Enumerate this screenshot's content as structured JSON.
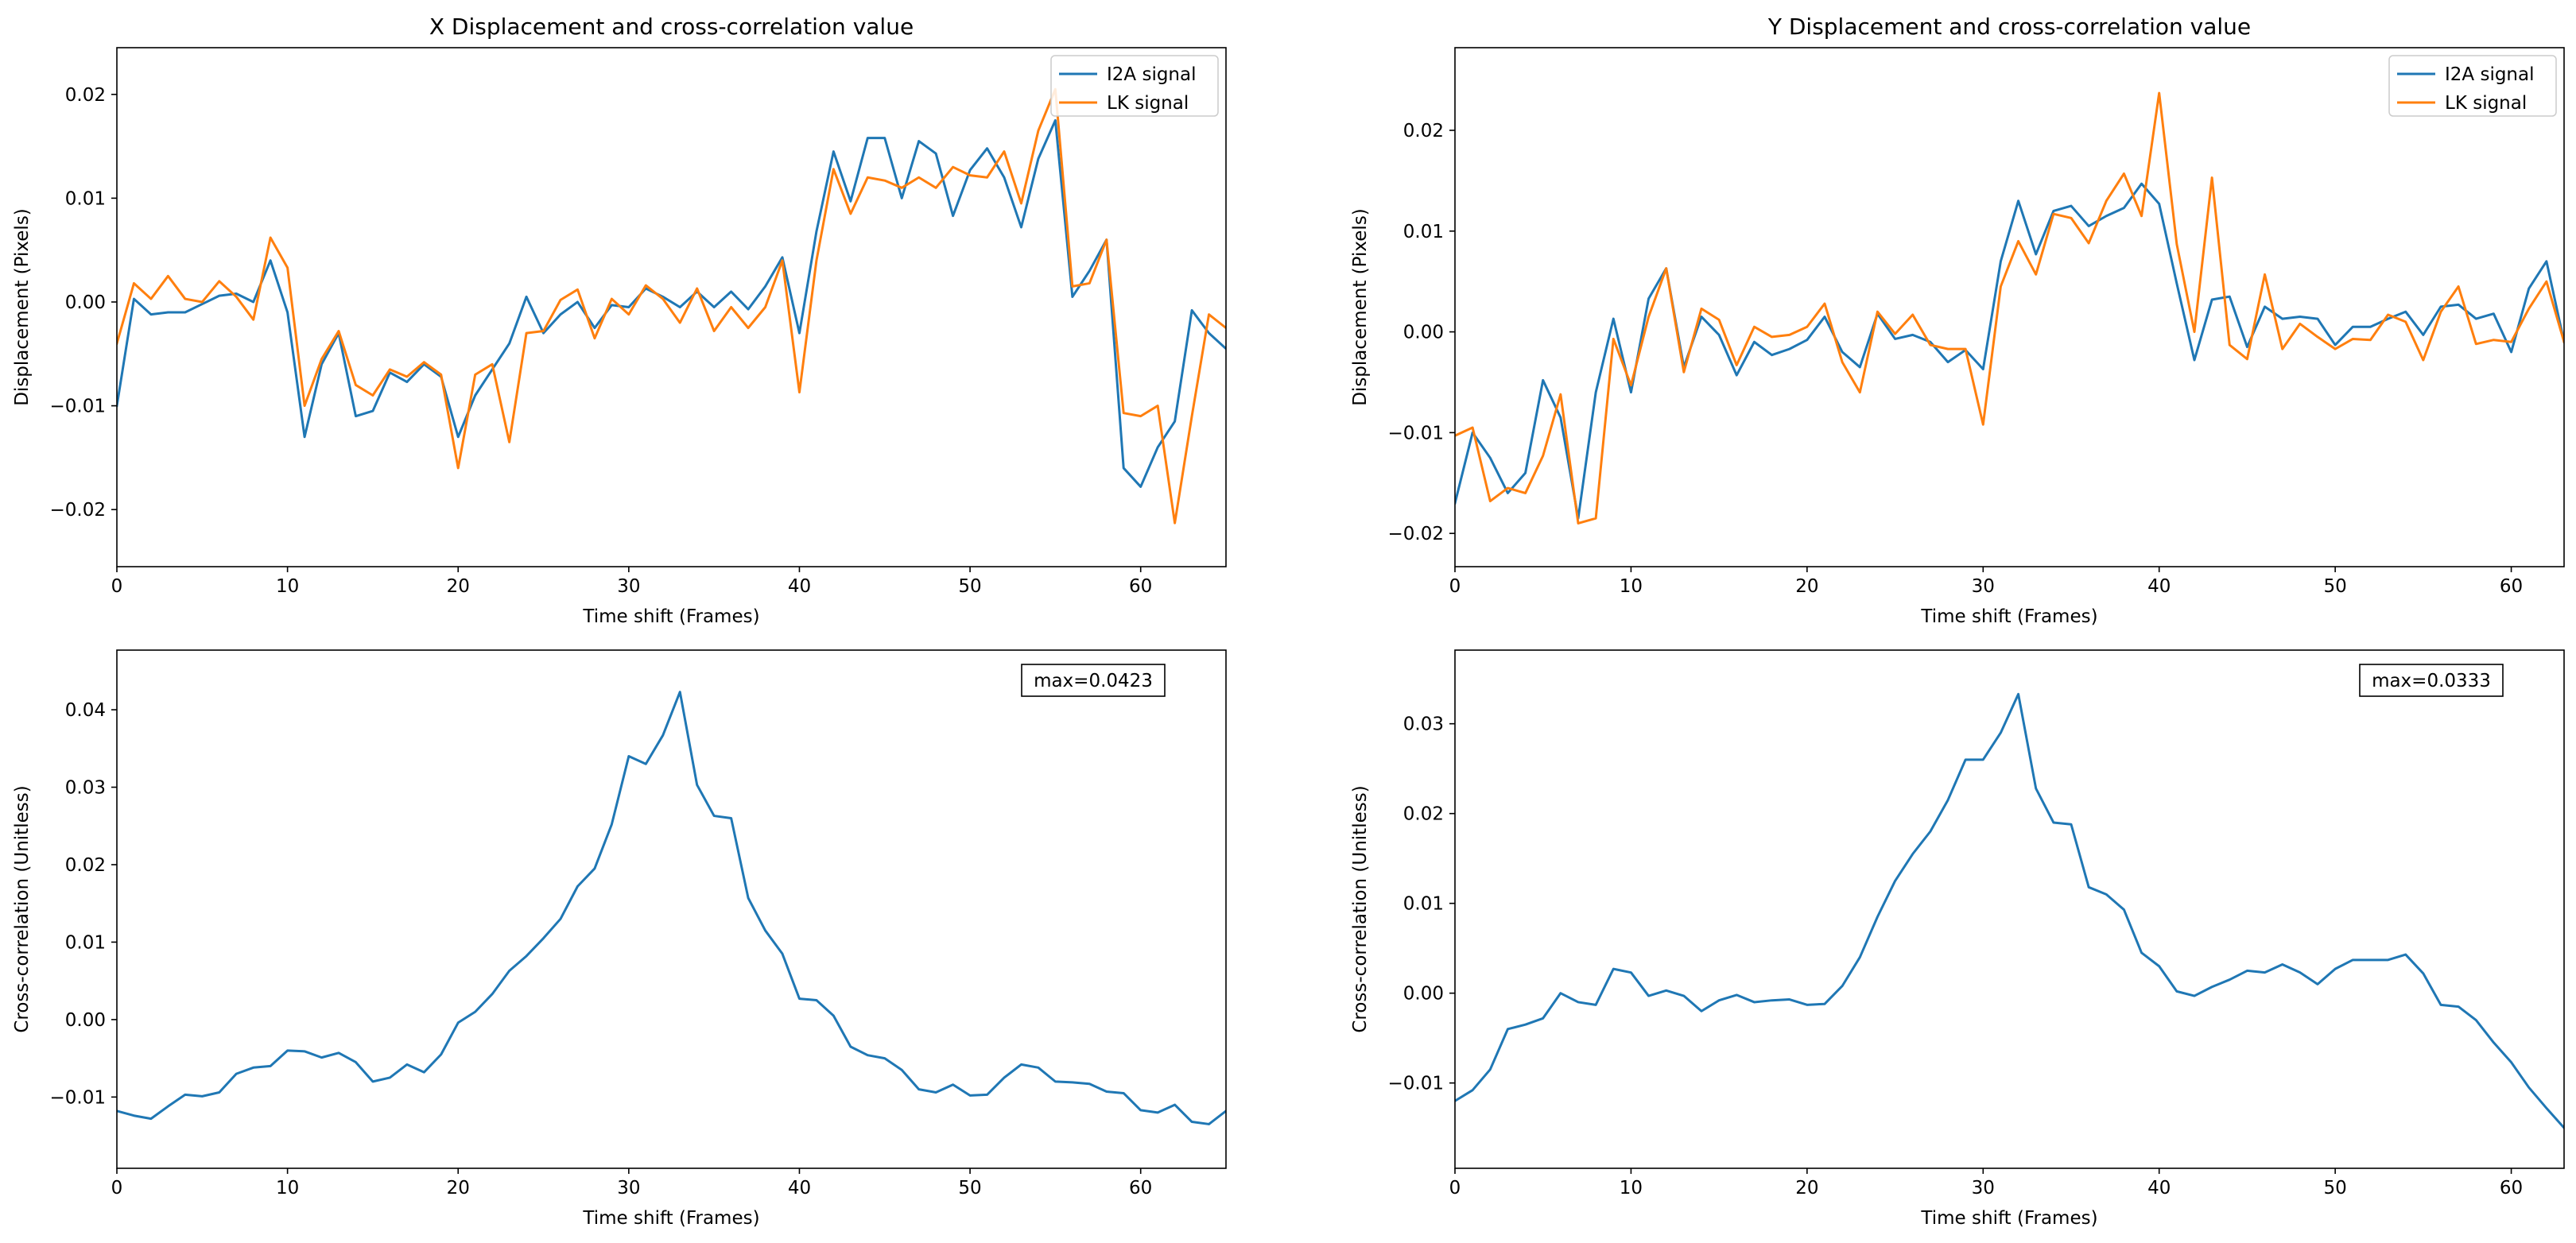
{
  "chart_data": [
    {
      "type": "line",
      "title": "X Displacement and cross-correlation value",
      "xlabel": "Time shift (Frames)",
      "ylabel": "Displacement (Pixels)",
      "xlim": [
        0,
        65
      ],
      "ylim": [
        -0.0255,
        0.0245
      ],
      "xticks": [
        0,
        10,
        20,
        30,
        40,
        50,
        60
      ],
      "xtick_labels": [
        "0",
        "10",
        "20",
        "30",
        "40",
        "50",
        "60"
      ],
      "yticks": [
        -0.02,
        -0.01,
        0.0,
        0.01,
        0.02
      ],
      "ytick_labels": [
        "−0.02",
        "−0.01",
        "0.00",
        "0.01",
        "0.02"
      ],
      "legend_position": "top-right",
      "grid": false,
      "series": [
        {
          "name": "I2A signal",
          "color": "#1f77b4",
          "x": [
            0,
            1,
            2,
            3,
            4,
            5,
            6,
            7,
            8,
            9,
            10,
            11,
            12,
            13,
            14,
            15,
            16,
            17,
            18,
            19,
            20,
            21,
            22,
            23,
            24,
            25,
            26,
            27,
            28,
            29,
            30,
            31,
            32,
            33,
            34,
            35,
            36,
            37,
            38,
            39,
            40,
            41,
            42,
            43,
            44,
            45,
            46,
            47,
            48,
            49,
            50,
            51,
            52,
            53,
            54,
            55,
            56,
            57,
            58,
            59,
            60,
            61,
            62,
            63,
            64,
            65
          ],
          "values": [
            -0.01,
            0.0003,
            -0.0012,
            -0.001,
            -0.001,
            -0.0002,
            0.0006,
            0.0008,
            0.0,
            0.004,
            -0.001,
            -0.013,
            -0.006,
            -0.003,
            -0.011,
            -0.0105,
            -0.0068,
            -0.0077,
            -0.006,
            -0.0072,
            -0.013,
            -0.009,
            -0.0065,
            -0.004,
            0.0005,
            -0.003,
            -0.0012,
            0.0,
            -0.0025,
            -0.0003,
            -0.0005,
            0.0013,
            0.0005,
            -0.0005,
            0.001,
            -0.0005,
            0.001,
            -0.0007,
            0.0015,
            0.0043,
            -0.003,
            0.0068,
            0.0145,
            0.0097,
            0.0158,
            0.0158,
            0.01,
            0.0155,
            0.0143,
            0.0083,
            0.0127,
            0.0148,
            0.012,
            0.0072,
            0.0138,
            0.0175,
            0.0005,
            0.003,
            0.006,
            -0.016,
            -0.0178,
            -0.014,
            -0.0115,
            -0.0008,
            -0.003,
            -0.0045
          ]
        },
        {
          "name": "LK signal",
          "color": "#ff7f0e",
          "x": [
            0,
            1,
            2,
            3,
            4,
            5,
            6,
            7,
            8,
            9,
            10,
            11,
            12,
            13,
            14,
            15,
            16,
            17,
            18,
            19,
            20,
            21,
            22,
            23,
            24,
            25,
            26,
            27,
            28,
            29,
            30,
            31,
            32,
            33,
            34,
            35,
            36,
            37,
            38,
            39,
            40,
            41,
            42,
            43,
            44,
            45,
            46,
            47,
            48,
            49,
            50,
            51,
            52,
            53,
            54,
            55,
            56,
            57,
            58,
            59,
            60,
            61,
            62,
            63,
            64,
            65
          ],
          "values": [
            -0.004,
            0.0018,
            0.0003,
            0.0025,
            0.0003,
            0.0,
            0.002,
            0.0005,
            -0.0017,
            0.0062,
            0.0033,
            -0.01,
            -0.0055,
            -0.0028,
            -0.008,
            -0.009,
            -0.0065,
            -0.0072,
            -0.0058,
            -0.007,
            -0.016,
            -0.007,
            -0.006,
            -0.0135,
            -0.003,
            -0.0028,
            0.0002,
            0.0012,
            -0.0035,
            0.0003,
            -0.0012,
            0.0016,
            0.0003,
            -0.002,
            0.0013,
            -0.0028,
            -0.0005,
            -0.0025,
            -0.0005,
            0.004,
            -0.0087,
            0.004,
            0.0128,
            0.0085,
            0.012,
            0.0117,
            0.011,
            0.012,
            0.011,
            0.013,
            0.0122,
            0.012,
            0.0145,
            0.0095,
            0.0165,
            0.0205,
            0.0015,
            0.0018,
            0.006,
            -0.0107,
            -0.011,
            -0.01,
            -0.0213,
            -0.011,
            -0.0012,
            -0.0025
          ]
        }
      ]
    },
    {
      "type": "line",
      "title": "Y Displacement and cross-correlation value",
      "xlabel": "Time shift (Frames)",
      "ylabel": "Displacement (Pixels)",
      "xlim": [
        0,
        63
      ],
      "ylim": [
        -0.0233,
        0.0282
      ],
      "xticks": [
        0,
        10,
        20,
        30,
        40,
        50,
        60
      ],
      "xtick_labels": [
        "0",
        "10",
        "20",
        "30",
        "40",
        "50",
        "60"
      ],
      "yticks": [
        -0.02,
        -0.01,
        0.0,
        0.01,
        0.02
      ],
      "ytick_labels": [
        "−0.02",
        "−0.01",
        "0.00",
        "0.01",
        "0.02"
      ],
      "legend_position": "top-right",
      "grid": false,
      "series": [
        {
          "name": "I2A signal",
          "color": "#1f77b4",
          "x": [
            0,
            1,
            2,
            3,
            4,
            5,
            6,
            7,
            8,
            9,
            10,
            11,
            12,
            13,
            14,
            15,
            16,
            17,
            18,
            19,
            20,
            21,
            22,
            23,
            24,
            25,
            26,
            27,
            28,
            29,
            30,
            31,
            32,
            33,
            34,
            35,
            36,
            37,
            38,
            39,
            40,
            41,
            42,
            43,
            44,
            45,
            46,
            47,
            48,
            49,
            50,
            51,
            52,
            53,
            54,
            55,
            56,
            57,
            58,
            59,
            60,
            61,
            62,
            63
          ],
          "values": [
            -0.017,
            -0.01,
            -0.0125,
            -0.016,
            -0.014,
            -0.0048,
            -0.0085,
            -0.0185,
            -0.006,
            0.0013,
            -0.006,
            0.0033,
            0.0063,
            -0.0035,
            0.0015,
            -0.0003,
            -0.0043,
            -0.001,
            -0.0023,
            -0.0017,
            -0.0008,
            0.0015,
            -0.002,
            -0.0035,
            0.0018,
            -0.0007,
            -0.0003,
            -0.001,
            -0.003,
            -0.0018,
            -0.0037,
            0.007,
            0.013,
            0.0077,
            0.012,
            0.0125,
            0.0105,
            0.0115,
            0.0123,
            0.0147,
            0.0127,
            0.0048,
            -0.0028,
            0.0032,
            0.0035,
            -0.0015,
            0.0025,
            0.0013,
            0.0015,
            0.0013,
            -0.0013,
            0.0005,
            0.0005,
            0.0013,
            0.002,
            -0.0003,
            0.0025,
            0.0027,
            0.0013,
            0.0018,
            -0.002,
            0.0043,
            0.007,
            -0.001
          ]
        },
        {
          "name": "LK signal",
          "color": "#ff7f0e",
          "x": [
            0,
            1,
            2,
            3,
            4,
            5,
            6,
            7,
            8,
            9,
            10,
            11,
            12,
            13,
            14,
            15,
            16,
            17,
            18,
            19,
            20,
            21,
            22,
            23,
            24,
            25,
            26,
            27,
            28,
            29,
            30,
            31,
            32,
            33,
            34,
            35,
            36,
            37,
            38,
            39,
            40,
            41,
            42,
            43,
            44,
            45,
            46,
            47,
            48,
            49,
            50,
            51,
            52,
            53,
            54,
            55,
            56,
            57,
            58,
            59,
            60,
            61,
            62,
            63
          ],
          "values": [
            -0.0103,
            -0.0095,
            -0.0168,
            -0.0155,
            -0.016,
            -0.0123,
            -0.0062,
            -0.019,
            -0.0185,
            -0.0007,
            -0.0053,
            0.0015,
            0.0063,
            -0.004,
            0.0023,
            0.0012,
            -0.0033,
            0.0005,
            -0.0005,
            -0.0003,
            0.0005,
            0.0028,
            -0.003,
            -0.006,
            0.002,
            -0.0002,
            0.0017,
            -0.0013,
            -0.0017,
            -0.0017,
            -0.0092,
            0.0045,
            0.009,
            0.0057,
            0.0117,
            0.0113,
            0.0088,
            0.013,
            0.0157,
            0.0115,
            0.0237,
            0.0087,
            0.0,
            0.0153,
            -0.0013,
            -0.0027,
            0.0057,
            -0.0017,
            0.0008,
            -0.0005,
            -0.0017,
            -0.0007,
            -0.0008,
            0.0017,
            0.001,
            -0.0028,
            0.002,
            0.0045,
            -0.0012,
            -0.0008,
            -0.001,
            0.0023,
            0.005,
            -0.001
          ]
        }
      ]
    },
    {
      "type": "line",
      "title": "",
      "xlabel": "Time shift (Frames)",
      "ylabel": "Cross-correlation (Unitless)",
      "xlim": [
        0,
        65
      ],
      "ylim": [
        -0.0192,
        0.0477
      ],
      "xticks": [
        0,
        10,
        20,
        30,
        40,
        50,
        60
      ],
      "xtick_labels": [
        "0",
        "10",
        "20",
        "30",
        "40",
        "50",
        "60"
      ],
      "yticks": [
        -0.01,
        0.0,
        0.01,
        0.02,
        0.03,
        0.04
      ],
      "ytick_labels": [
        "−0.01",
        "0.00",
        "0.01",
        "0.02",
        "0.03",
        "0.04"
      ],
      "annotation": "max=0.0423",
      "grid": false,
      "series": [
        {
          "name": "cross-correlation",
          "color": "#1f77b4",
          "x": [
            0,
            1,
            2,
            3,
            4,
            5,
            6,
            7,
            8,
            9,
            10,
            11,
            12,
            13,
            14,
            15,
            16,
            17,
            18,
            19,
            20,
            21,
            22,
            23,
            24,
            25,
            26,
            27,
            28,
            29,
            30,
            31,
            32,
            33,
            34,
            35,
            36,
            37,
            38,
            39,
            40,
            41,
            42,
            43,
            44,
            45,
            46,
            47,
            48,
            49,
            50,
            51,
            52,
            53,
            54,
            55,
            56,
            57,
            58,
            59,
            60,
            61,
            62,
            63,
            64,
            65
          ],
          "values": [
            -0.0118,
            -0.0124,
            -0.0128,
            -0.0112,
            -0.0097,
            -0.0099,
            -0.0094,
            -0.007,
            -0.0062,
            -0.006,
            -0.004,
            -0.0041,
            -0.0049,
            -0.0043,
            -0.0055,
            -0.008,
            -0.0075,
            -0.0058,
            -0.0068,
            -0.0045,
            -0.0004,
            0.001,
            0.0033,
            0.0063,
            0.0082,
            0.0105,
            0.013,
            0.0172,
            0.0195,
            0.0252,
            0.034,
            0.033,
            0.0367,
            0.0423,
            0.0303,
            0.0263,
            0.026,
            0.0157,
            0.0115,
            0.0085,
            0.0027,
            0.0025,
            0.0005,
            -0.0035,
            -0.0046,
            -0.005,
            -0.0065,
            -0.009,
            -0.0094,
            -0.0084,
            -0.0098,
            -0.0097,
            -0.0075,
            -0.0058,
            -0.0062,
            -0.008,
            -0.0081,
            -0.0083,
            -0.0093,
            -0.0095,
            -0.0117,
            -0.012,
            -0.011,
            -0.0132,
            -0.0135,
            -0.0118
          ]
        }
      ]
    },
    {
      "type": "line",
      "title": "",
      "xlabel": "Time shift (Frames)",
      "ylabel": "Cross-correlation (Unitless)",
      "xlim": [
        0,
        63
      ],
      "ylim": [
        -0.0195,
        0.0382
      ],
      "xticks": [
        0,
        10,
        20,
        30,
        40,
        50,
        60
      ],
      "xtick_labels": [
        "0",
        "10",
        "20",
        "30",
        "40",
        "50",
        "60"
      ],
      "yticks": [
        -0.01,
        0.0,
        0.01,
        0.02,
        0.03
      ],
      "ytick_labels": [
        "−0.01",
        "0.00",
        "0.01",
        "0.02",
        "0.03"
      ],
      "annotation": "max=0.0333",
      "grid": false,
      "series": [
        {
          "name": "cross-correlation",
          "color": "#1f77b4",
          "x": [
            0,
            1,
            2,
            3,
            4,
            5,
            6,
            7,
            8,
            9,
            10,
            11,
            12,
            13,
            14,
            15,
            16,
            17,
            18,
            19,
            20,
            21,
            22,
            23,
            24,
            25,
            26,
            27,
            28,
            29,
            30,
            31,
            32,
            33,
            34,
            35,
            36,
            37,
            38,
            39,
            40,
            41,
            42,
            43,
            44,
            45,
            46,
            47,
            48,
            49,
            50,
            51,
            52,
            53,
            54,
            55,
            56,
            57,
            58,
            59,
            60,
            61,
            62,
            63
          ],
          "values": [
            -0.012,
            -0.0108,
            -0.0085,
            -0.004,
            -0.0035,
            -0.0028,
            0.0,
            -0.001,
            -0.0013,
            0.0027,
            0.0023,
            -0.0003,
            0.0003,
            -0.0003,
            -0.002,
            -0.0008,
            -0.0002,
            -0.001,
            -0.0008,
            -0.0007,
            -0.0013,
            -0.0012,
            0.0008,
            0.004,
            0.0085,
            0.0125,
            0.0155,
            0.018,
            0.0215,
            0.026,
            0.026,
            0.029,
            0.0333,
            0.0228,
            0.019,
            0.0188,
            0.0118,
            0.011,
            0.0093,
            0.0045,
            0.003,
            0.0002,
            -0.0003,
            0.0007,
            0.0015,
            0.0025,
            0.0023,
            0.0032,
            0.0023,
            0.001,
            0.0027,
            0.0037,
            0.0037,
            0.0037,
            0.0043,
            0.0022,
            -0.0013,
            -0.0015,
            -0.003,
            -0.0055,
            -0.0077,
            -0.0105,
            -0.0128,
            -0.015
          ]
        }
      ]
    }
  ]
}
